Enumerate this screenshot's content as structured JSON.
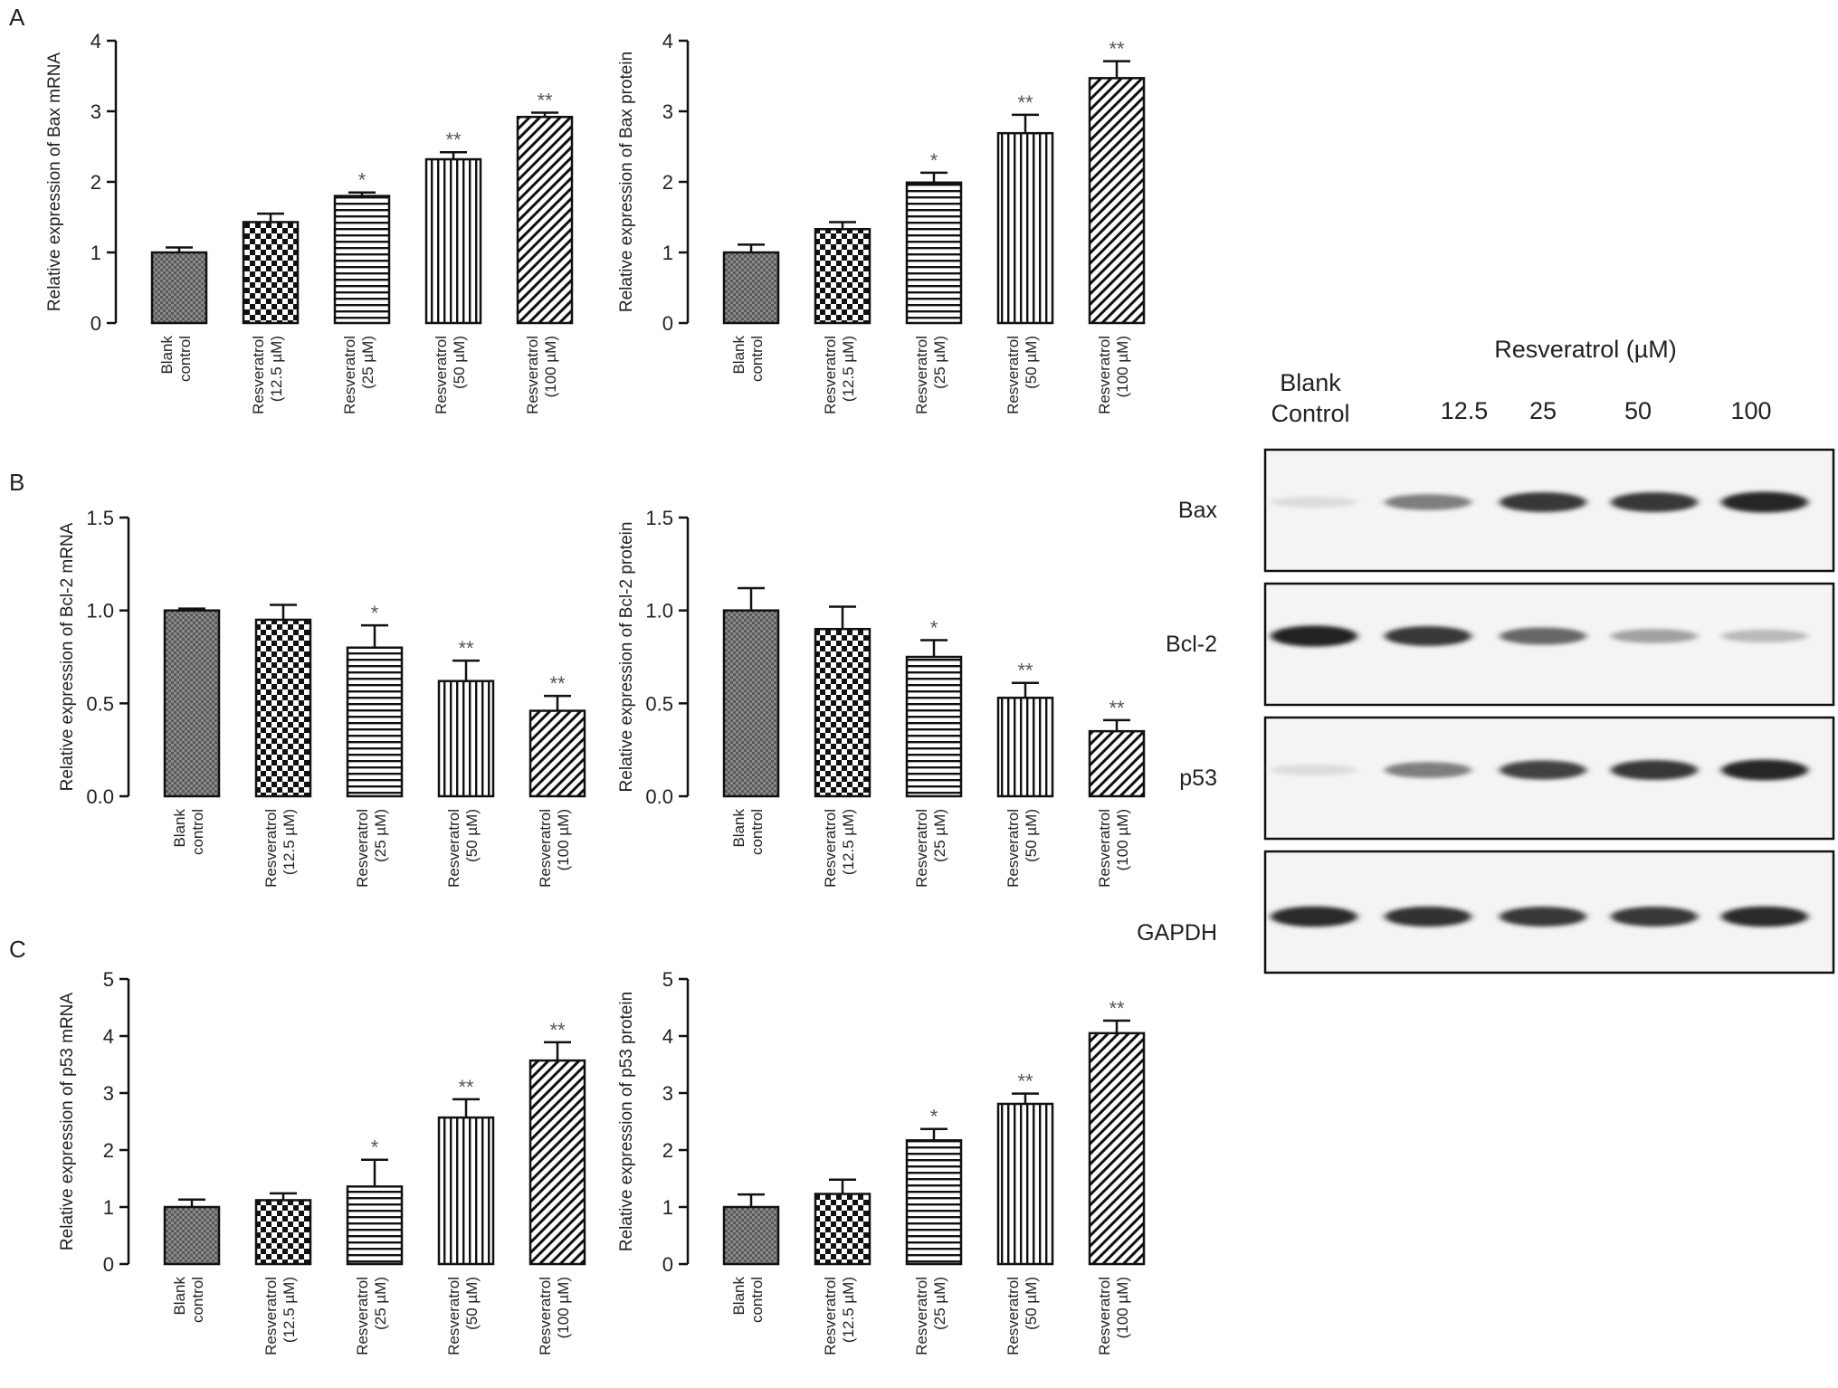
{
  "panel_letters": [
    "A",
    "B",
    "C"
  ],
  "chart_data": [
    {
      "id": "bax-mrna",
      "panel": "A",
      "type": "bar",
      "ylabel": "Relative expression of Bax mRNA",
      "ylim": [
        0,
        4
      ],
      "yticks": [
        0,
        1,
        2,
        3,
        4
      ],
      "tick_labels": [
        "0",
        "1",
        "2",
        "3",
        "4"
      ],
      "categories": [
        "Blank control",
        "Resveratrol (12.5 µM)",
        "Resveratrol (25 µM)",
        "Resveratrol (50 µM)",
        "Resveratrol (100 µM)"
      ],
      "category_lines": [
        [
          "Blank",
          "control"
        ],
        [
          "Resveratrol",
          "(12.5 µM)"
        ],
        [
          "Resveratrol",
          "(25 µM)"
        ],
        [
          "Resveratrol",
          "(50 µM)"
        ],
        [
          "Resveratrol",
          "(100 µM)"
        ]
      ],
      "values": [
        1.0,
        1.43,
        1.8,
        2.32,
        2.92
      ],
      "errors": [
        0.07,
        0.12,
        0.05,
        0.1,
        0.06
      ],
      "significance": [
        "",
        "",
        "*",
        "**",
        "**"
      ]
    },
    {
      "id": "bax-protein",
      "panel": "A",
      "type": "bar",
      "ylabel": "Relative expression of Bax protein",
      "ylim": [
        0,
        4
      ],
      "yticks": [
        0,
        1,
        2,
        3,
        4
      ],
      "tick_labels": [
        "0",
        "1",
        "2",
        "3",
        "4"
      ],
      "categories": [
        "Blank control",
        "Resveratrol (12.5 µM)",
        "Resveratrol (25 µM)",
        "Resveratrol (50 µM)",
        "Resveratrol (100 µM)"
      ],
      "category_lines": [
        [
          "Blank",
          "control"
        ],
        [
          "Resveratrol",
          "(12.5 µM)"
        ],
        [
          "Resveratrol",
          "(25 µM)"
        ],
        [
          "Resveratrol",
          "(50 µM)"
        ],
        [
          "Resveratrol",
          "(100 µM)"
        ]
      ],
      "values": [
        1.0,
        1.33,
        1.99,
        2.69,
        3.47
      ],
      "errors": [
        0.11,
        0.1,
        0.14,
        0.26,
        0.24
      ],
      "significance": [
        "",
        "",
        "*",
        "**",
        "**"
      ]
    },
    {
      "id": "bcl2-mrna",
      "panel": "B",
      "type": "bar",
      "ylabel": "Relative expression of Bcl-2 mRNA",
      "ylim": [
        0,
        1.5
      ],
      "yticks": [
        0,
        0.5,
        1,
        1.5
      ],
      "tick_labels": [
        "0.0",
        "0.5",
        "1.0",
        "1.5"
      ],
      "categories": [
        "Blank control",
        "Resveratrol (12.5 µM)",
        "Resveratrol (25 µM)",
        "Resveratrol (50 µM)",
        "Resveratrol (100 µM)"
      ],
      "category_lines": [
        [
          "Blank",
          "control"
        ],
        [
          "Resveratrol",
          "(12.5 µM)"
        ],
        [
          "Resveratrol",
          "(25 µM)"
        ],
        [
          "Resveratrol",
          "(50 µM)"
        ],
        [
          "Resveratrol",
          "(100 µM)"
        ]
      ],
      "values": [
        1.0,
        0.95,
        0.8,
        0.62,
        0.46
      ],
      "errors": [
        0.01,
        0.08,
        0.12,
        0.11,
        0.08
      ],
      "significance": [
        "",
        "",
        "*",
        "**",
        "**"
      ]
    },
    {
      "id": "bcl2-protein",
      "panel": "B",
      "type": "bar",
      "ylabel": "Relative expression of Bcl-2 protein",
      "ylim": [
        0,
        1.5
      ],
      "yticks": [
        0,
        0.5,
        1,
        1.5
      ],
      "tick_labels": [
        "0.0",
        "0.5",
        "1.0",
        "1.5"
      ],
      "categories": [
        "Blank control",
        "Resveratrol (12.5 µM)",
        "Resveratrol (25 µM)",
        "Resveratrol (50 µM)",
        "Resveratrol (100 µM)"
      ],
      "category_lines": [
        [
          "Blank",
          "control"
        ],
        [
          "Resveratrol",
          "(12.5 µM)"
        ],
        [
          "Resveratrol",
          "(25 µM)"
        ],
        [
          "Resveratrol",
          "(50 µM)"
        ],
        [
          "Resveratrol",
          "(100 µM)"
        ]
      ],
      "values": [
        1.0,
        0.9,
        0.75,
        0.53,
        0.35
      ],
      "errors": [
        0.12,
        0.12,
        0.09,
        0.08,
        0.06
      ],
      "significance": [
        "",
        "",
        "*",
        "**",
        "**"
      ]
    },
    {
      "id": "p53-mrna",
      "panel": "C",
      "type": "bar",
      "ylabel": "Relative expression of p53 mRNA",
      "ylim": [
        0,
        5
      ],
      "yticks": [
        0,
        1,
        2,
        3,
        4,
        5
      ],
      "tick_labels": [
        "0",
        "1",
        "2",
        "3",
        "4",
        "5"
      ],
      "categories": [
        "Blank control",
        "Resveratrol (12.5 µM)",
        "Resveratrol (25 µM)",
        "Resveratrol (50 µM)",
        "Resveratrol (100 µM)"
      ],
      "category_lines": [
        [
          "Blank",
          "control"
        ],
        [
          "Resveratrol",
          "(12.5 µM)"
        ],
        [
          "Resveratrol",
          "(25 µM)"
        ],
        [
          "Resveratrol",
          "(50 µM)"
        ],
        [
          "Resveratrol",
          "(100 µM)"
        ]
      ],
      "values": [
        1.0,
        1.12,
        1.36,
        2.57,
        3.57
      ],
      "errors": [
        0.13,
        0.12,
        0.47,
        0.32,
        0.32
      ],
      "significance": [
        "",
        "",
        "*",
        "**",
        "**"
      ]
    },
    {
      "id": "p53-protein",
      "panel": "C",
      "type": "bar",
      "ylabel": "Relative expression of p53 protein",
      "ylim": [
        0,
        5
      ],
      "yticks": [
        0,
        1,
        2,
        3,
        4,
        5
      ],
      "tick_labels": [
        "0",
        "1",
        "2",
        "3",
        "4",
        "5"
      ],
      "categories": [
        "Blank control",
        "Resveratrol (12.5 µM)",
        "Resveratrol (25 µM)",
        "Resveratrol (50 µM)",
        "Resveratrol (100 µM)"
      ],
      "category_lines": [
        [
          "Blank",
          "control"
        ],
        [
          "Resveratrol",
          "(12.5 µM)"
        ],
        [
          "Resveratrol",
          "(25 µM)"
        ],
        [
          "Resveratrol",
          "(50 µM)"
        ],
        [
          "Resveratrol",
          "(100 µM)"
        ]
      ],
      "values": [
        1.0,
        1.23,
        2.17,
        2.81,
        4.05
      ],
      "errors": [
        0.22,
        0.25,
        0.2,
        0.18,
        0.22
      ],
      "significance": [
        "",
        "",
        "*",
        "**",
        "**"
      ]
    }
  ],
  "western_blot": {
    "header": "Resveratrol (µM)",
    "lanes": [
      [
        "Blank",
        "Control"
      ],
      [
        "12.5"
      ],
      [
        "25"
      ],
      [
        "50"
      ],
      [
        "100"
      ]
    ],
    "rows": [
      {
        "label": "Bax",
        "intensity": [
          0.15,
          0.55,
          0.85,
          0.85,
          0.92
        ]
      },
      {
        "label": "Bcl-2",
        "intensity": [
          0.95,
          0.85,
          0.65,
          0.4,
          0.3
        ]
      },
      {
        "label": "p53",
        "intensity": [
          0.15,
          0.55,
          0.8,
          0.85,
          0.92
        ]
      },
      {
        "label": "GAPDH",
        "intensity": [
          0.9,
          0.88,
          0.85,
          0.85,
          0.9
        ]
      }
    ]
  }
}
